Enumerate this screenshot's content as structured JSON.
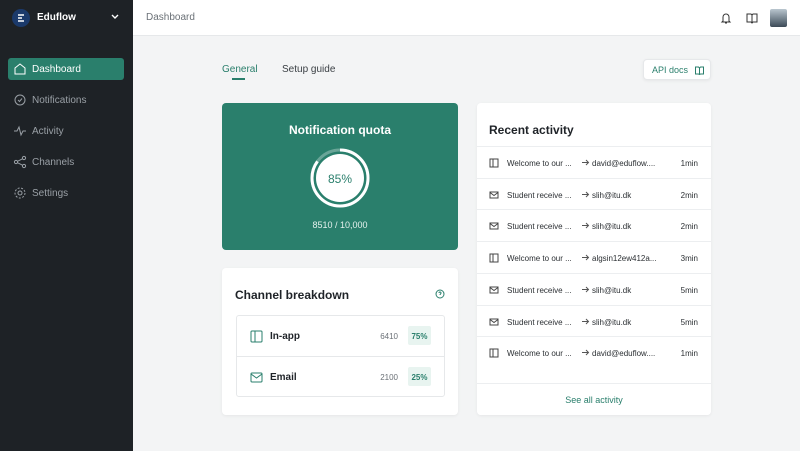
{
  "sidebar": {
    "brand": "Eduflow",
    "nav": [
      "Dashboard",
      "Notifications",
      "Activity",
      "Channels",
      "Settings"
    ]
  },
  "topbar": {
    "title": "Dashboard"
  },
  "tabs": [
    "General",
    "Setup guide"
  ],
  "api_docs": "API docs",
  "quota": {
    "title": "Notification quota",
    "percent": 85,
    "percent_label": "85%",
    "usage": "8510 / 10,000"
  },
  "channels": {
    "title": "Channel breakdown",
    "rows": [
      {
        "name": "In-app",
        "count": "6410",
        "share": "75%"
      },
      {
        "name": "Email",
        "count": "2100",
        "share": "25%"
      }
    ]
  },
  "activity": {
    "title": "Recent activity",
    "link": "See all activity",
    "rows": [
      {
        "message": "Welcome to our ...",
        "recipient": "david@eduflow....",
        "time": "1min"
      },
      {
        "message": "Student receive ...",
        "recipient": "slih@itu.dk",
        "time": "2min"
      },
      {
        "message": "Student receive ...",
        "recipient": "slih@itu.dk",
        "time": "2min"
      },
      {
        "message": "Welcome to our ...",
        "recipient": "algsin12ew412a...",
        "time": "3min"
      },
      {
        "message": "Student receive ...",
        "recipient": "slih@itu.dk",
        "time": "5min"
      },
      {
        "message": "Student receive ...",
        "recipient": "slih@itu.dk",
        "time": "5min"
      },
      {
        "message": "Welcome to our ...",
        "recipient": "david@eduflow....",
        "time": "1min"
      }
    ]
  }
}
